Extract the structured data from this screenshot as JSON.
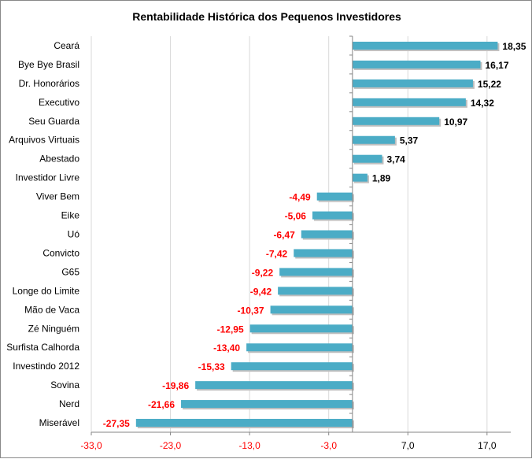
{
  "chart_data": {
    "type": "bar",
    "orientation": "horizontal",
    "title": "Rentabilidade Histórica dos Pequenos Investidores",
    "xlabel": "",
    "ylabel": "",
    "categories": [
      "Ceará",
      "Bye Bye Brasil",
      "Dr. Honorários",
      "Executivo",
      "Seu Guarda",
      "Arquivos Virtuais",
      "Abestado",
      "Investidor Livre",
      "Viver Bem",
      "Eike",
      "Uó",
      "Convicto",
      "G65",
      "Longe do Limite",
      "Mão de Vaca",
      "Zé Ninguém",
      "Surfista Calhorda",
      "Investindo 2012",
      "Sovina",
      "Nerd",
      "Miserável"
    ],
    "values": [
      18.35,
      16.17,
      15.22,
      14.32,
      10.97,
      5.37,
      3.74,
      1.89,
      -4.49,
      -5.06,
      -6.47,
      -7.42,
      -9.22,
      -9.42,
      -10.37,
      -12.95,
      -13.4,
      -15.33,
      -19.86,
      -21.66,
      -27.35
    ],
    "value_labels": [
      "18,35",
      "16,17",
      "15,22",
      "14,32",
      "10,97",
      "5,37",
      "3,74",
      "1,89",
      "-4,49",
      "-5,06",
      "-6,47",
      "-7,42",
      "-9,22",
      "-9,42",
      "-10,37",
      "-12,95",
      "-13,40",
      "-15,33",
      "-19,86",
      "-21,66",
      "-27,35"
    ],
    "xlim": [
      -33,
      20
    ],
    "xticks": [
      -33,
      -23,
      -13,
      -3,
      7,
      17
    ],
    "xtick_labels": [
      "-33,0",
      "-23,0",
      "-13,0",
      "-3,0",
      "7,0",
      "17,0"
    ],
    "grid": true,
    "colors": {
      "bar": "#4bacc6",
      "bar_shadow": "#bfbfbf",
      "positive_label": "#000000",
      "negative_label": "#ff0000",
      "grid": "#d9d9d9",
      "axis": "#868686"
    }
  }
}
